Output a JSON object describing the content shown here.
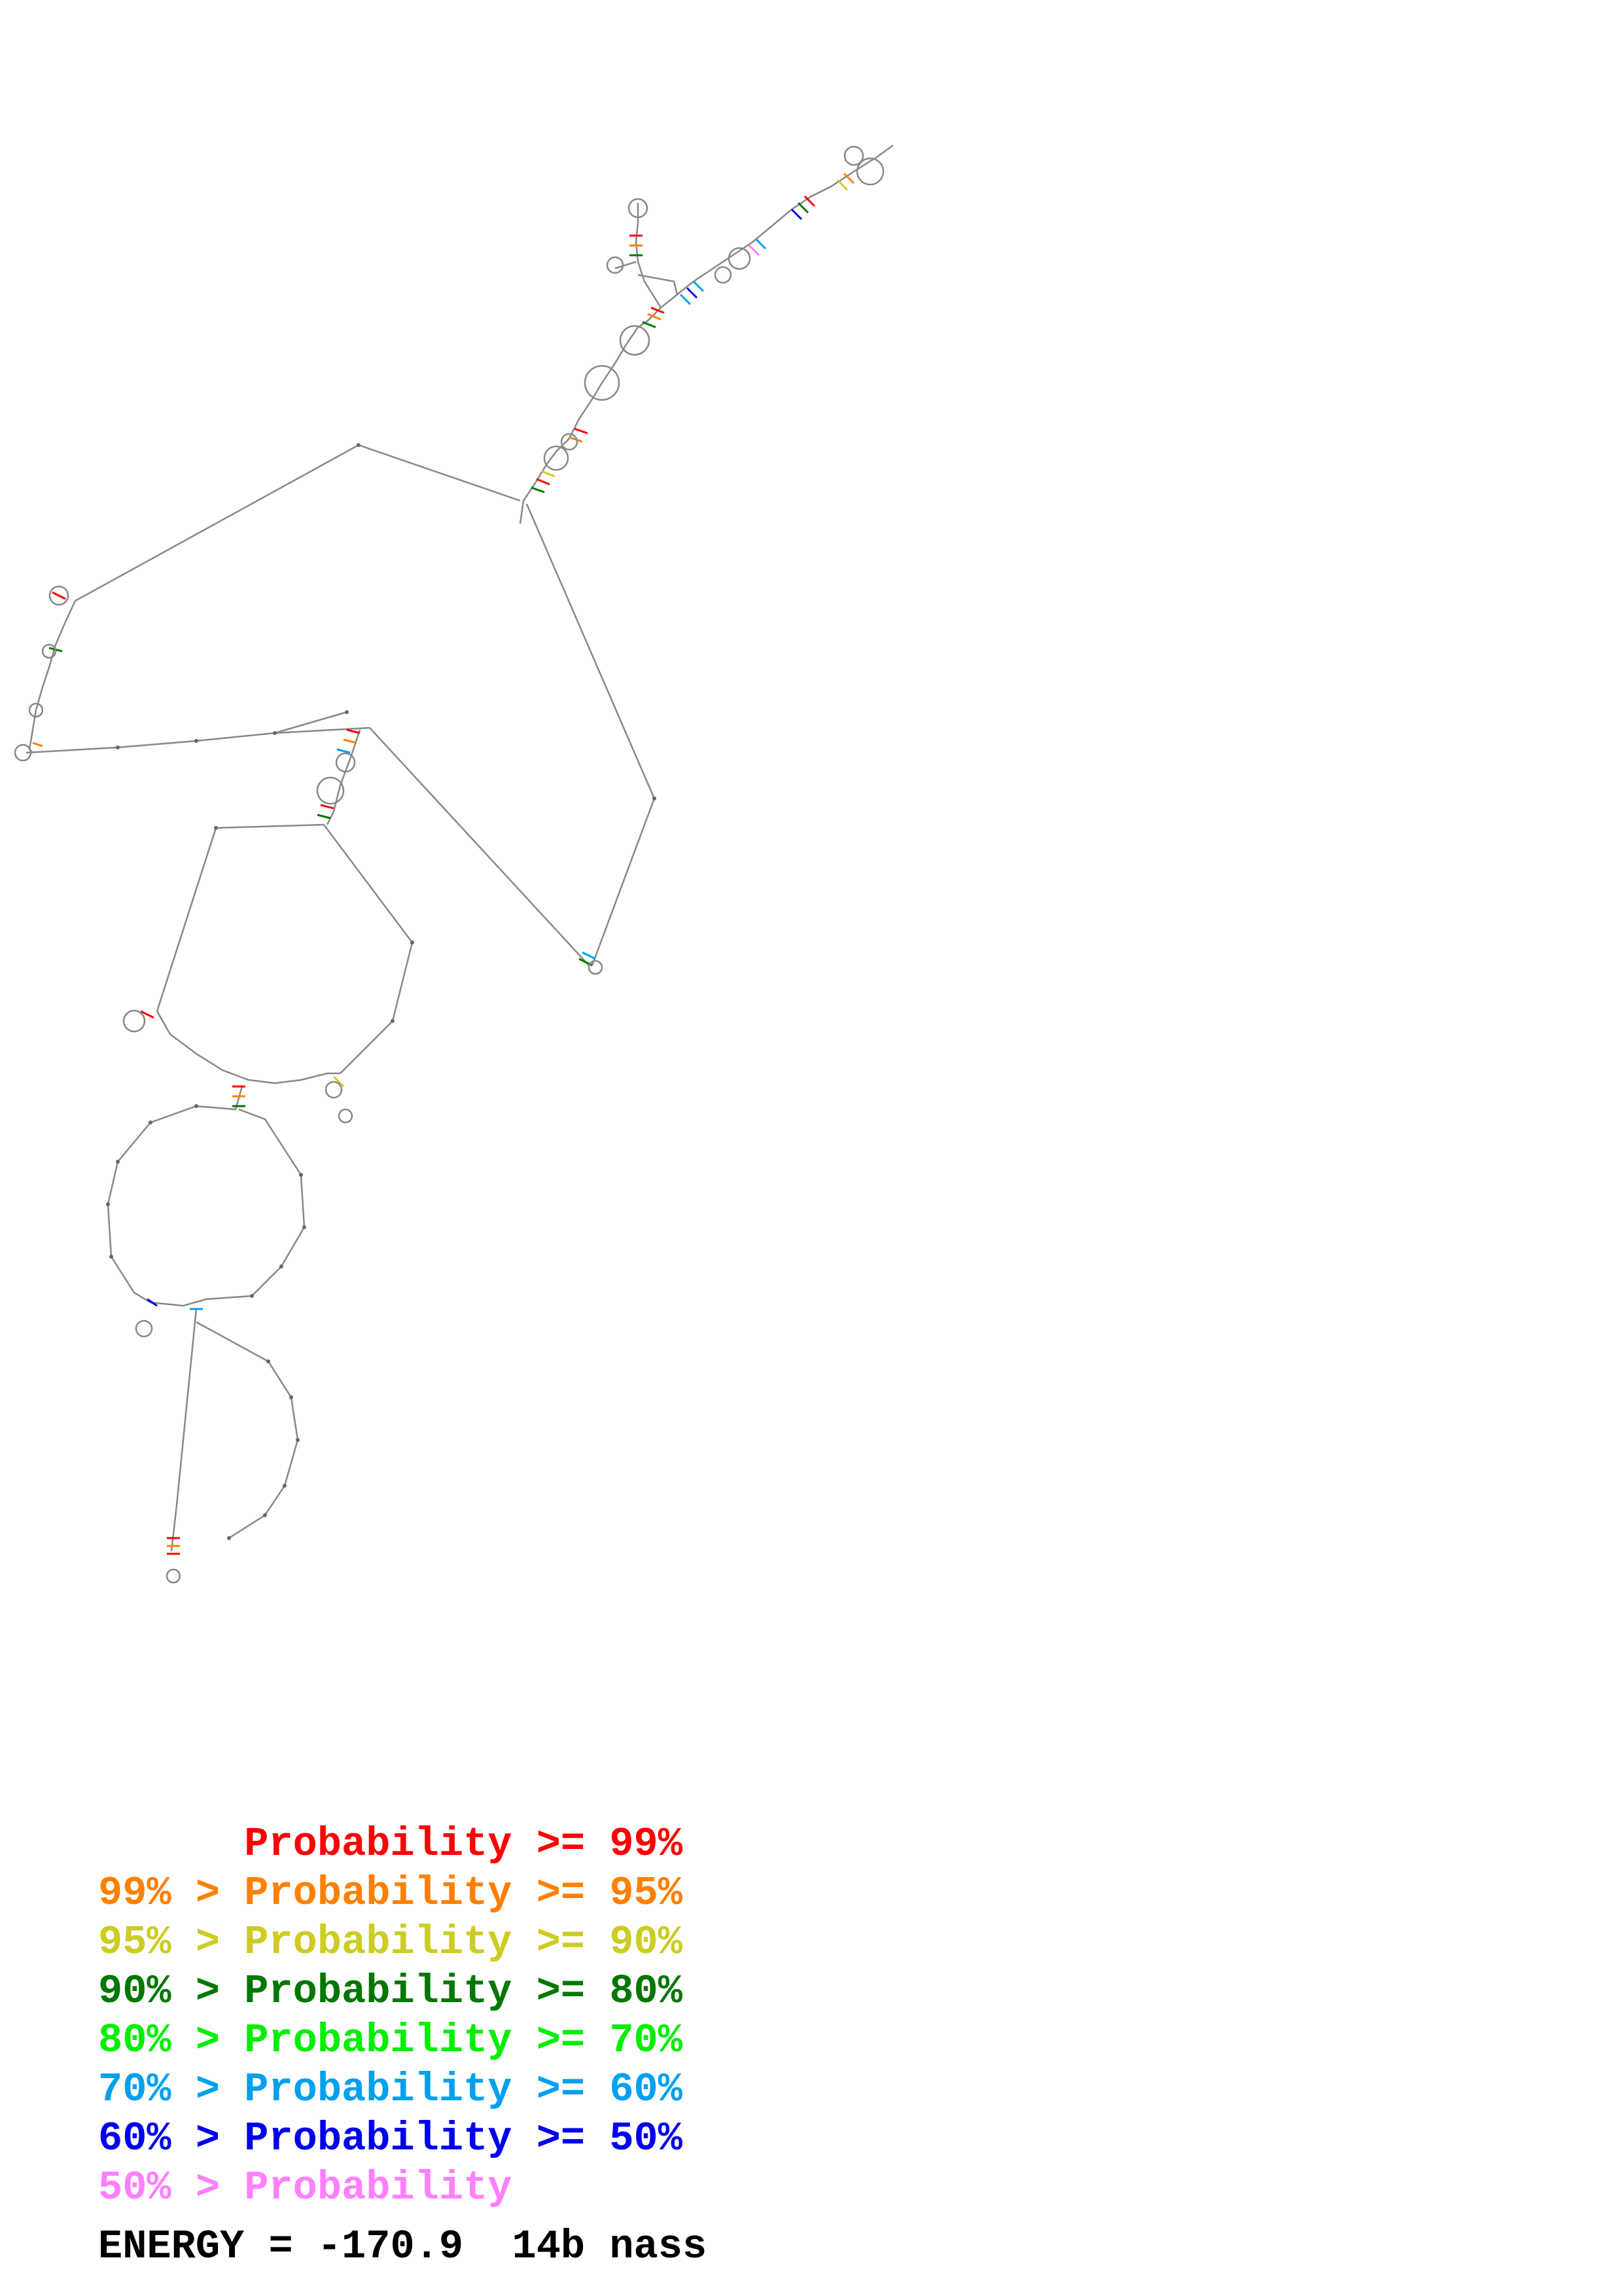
{
  "legend": {
    "entries": [
      {
        "text": "      Probability >= 99%",
        "color": "#ff0000"
      },
      {
        "text": "99% > Probability >= 95%",
        "color": "#ff8000"
      },
      {
        "text": "95% > Probability >= 90%",
        "color": "#cccc22"
      },
      {
        "text": "90% > Probability >= 80%",
        "color": "#007700"
      },
      {
        "text": "80% > Probability >= 70%",
        "color": "#00ee00"
      },
      {
        "text": "70% > Probability >= 60%",
        "color": "#00a0ee"
      },
      {
        "text": "60% > Probability >= 50%",
        "color": "#0000ee"
      },
      {
        "text": "50% > Probability",
        "color": "#ff80ff"
      }
    ]
  },
  "energy": {
    "label": "ENERGY = -170.9  14b nass"
  },
  "structure": {
    "backbone_color": "#888888"
  }
}
